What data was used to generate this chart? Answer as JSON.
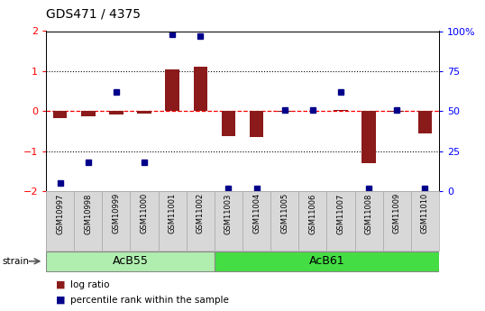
{
  "title": "GDS471 / 4375",
  "samples": [
    "GSM10997",
    "GSM10998",
    "GSM10999",
    "GSM11000",
    "GSM11001",
    "GSM11002",
    "GSM11003",
    "GSM11004",
    "GSM11005",
    "GSM11006",
    "GSM11007",
    "GSM11008",
    "GSM11009",
    "GSM11010"
  ],
  "log_ratio": [
    -0.18,
    -0.12,
    -0.08,
    -0.07,
    1.05,
    1.12,
    -0.62,
    -0.65,
    -0.02,
    0.01,
    0.02,
    -1.3,
    -0.01,
    -0.55
  ],
  "percentile": [
    5,
    18,
    62,
    18,
    98,
    97,
    2,
    2,
    51,
    51,
    62,
    2,
    51,
    2
  ],
  "group_acb55": {
    "label": "AcB55",
    "start": 0,
    "end": 5,
    "color": "#b0eeb0"
  },
  "group_acb61": {
    "label": "AcB61",
    "start": 6,
    "end": 13,
    "color": "#44dd44"
  },
  "ylim": [
    -2,
    2
  ],
  "yticks_left": [
    -2,
    -1,
    0,
    1,
    2
  ],
  "yticks_right": [
    0,
    25,
    50,
    75,
    100
  ],
  "bar_color": "#8b1a1a",
  "dot_color": "#00008b",
  "bg_color": "#d8d8d8",
  "plot_bg": "#ffffff",
  "legend_items": [
    {
      "label": "log ratio",
      "color": "#8b1a1a"
    },
    {
      "label": "percentile rank within the sample",
      "color": "#00008b"
    }
  ]
}
